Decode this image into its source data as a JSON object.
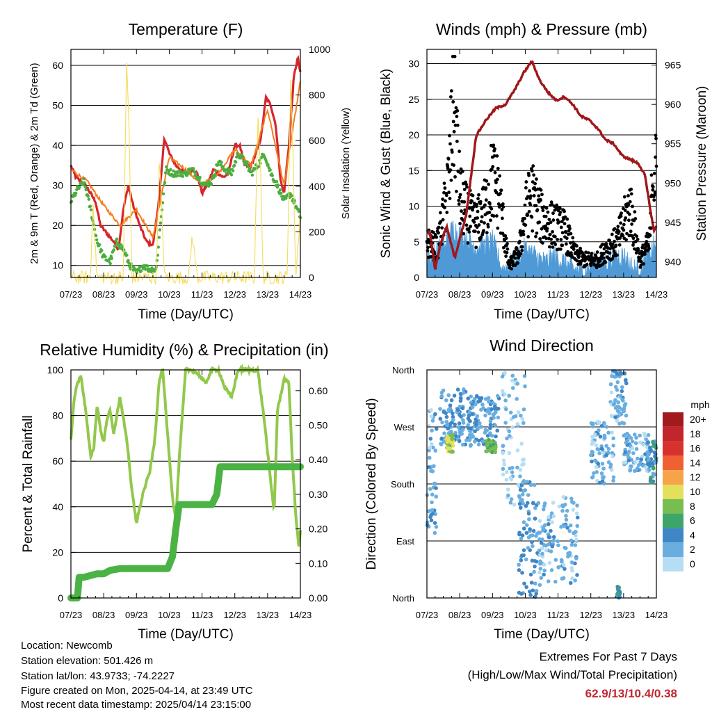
{
  "x_ticks": [
    "07/23",
    "08/23",
    "09/23",
    "10/23",
    "11/23",
    "12/23",
    "13/23",
    "14/23"
  ],
  "panels": {
    "temperature": {
      "title": "Temperature (F)",
      "ylabel": "2m & 9m T (Red, Orange) & 2m Td (Green)",
      "y2label": "Solar Insolation (Yellow)",
      "xlabel": "Time (Day/UTC)"
    },
    "winds": {
      "title": "Winds (mph) & Pressure (mb)",
      "ylabel": "Sonic Wind & Gust (Blue, Black)",
      "y2label": "Station Pressure (Maroon)",
      "xlabel": "Time (Day/UTC)"
    },
    "humidity": {
      "title": "Relative Humidity (%) & Precipitation (in)",
      "ylabel": "Percent & Total Rainfall",
      "xlabel": "Time (Day/UTC)"
    },
    "direction": {
      "title": "Wind Direction",
      "ylabel": "Direction (Colored By Speed)",
      "xlabel": "Time (Day/UTC)",
      "legend_title": "mph"
    }
  },
  "footer": {
    "location": "Location: Newcomb",
    "elevation": "Station elevation: 501.426 m",
    "latlon": "Station lat/lon: 43.9733; -74.2227",
    "created": "Figure created on Mon, 2025-04-14, at 23:49 UTC",
    "recent": "Most recent data timestamp: 2025/04/14 23:15:00"
  },
  "extremes": {
    "heading": "Extremes For Past 7 Days",
    "subheading": "(High/Low/Max Wind/Total Precipitation)",
    "values": "62.9/13/10.4/0.38"
  },
  "colors": {
    "temp_2m": "#d7262b",
    "temp_9m": "#f47c20",
    "dewpoint": "#4bae3f",
    "solar": "#f5dc5a",
    "wind": "#4f9ad6",
    "gust": "#000000",
    "pressure": "#a0171b",
    "rh": "#92c84c",
    "precip": "#4bb344"
  },
  "chart_data": [
    {
      "type": "line",
      "title": "Temperature (F)",
      "xlabel": "Time (Day/UTC)",
      "ylabel": "2m & 9m T (Red, Orange) & 2m Td (Green)",
      "y2label": "Solar Insolation (Yellow)",
      "x_range": [
        0,
        7
      ],
      "ylim": [
        7,
        64
      ],
      "y_ticks": [
        10,
        20,
        30,
        40,
        50,
        60
      ],
      "y2lim": [
        0,
        1000
      ],
      "y2_ticks": [
        0,
        200,
        400,
        600,
        800,
        1000
      ],
      "grid": true,
      "series": [
        {
          "name": "2m T",
          "color": "#d7262b",
          "x": [
            0,
            0.15,
            0.3,
            0.45,
            0.6,
            0.75,
            0.9,
            1.1,
            1.3,
            1.45,
            1.6,
            1.75,
            1.9,
            2.1,
            2.3,
            2.5,
            2.65,
            2.75,
            2.85,
            3.0,
            3.2,
            3.5,
            3.7,
            3.85,
            4.0,
            4.2,
            4.35,
            4.5,
            4.65,
            4.8,
            5.0,
            5.15,
            5.3,
            5.5,
            5.65,
            5.8,
            5.95,
            6.1,
            6.25,
            6.4,
            6.5,
            6.65,
            6.8,
            6.92,
            7.0
          ],
          "y": [
            35,
            32,
            31,
            30,
            28,
            26,
            20,
            18,
            16,
            14,
            24,
            30,
            25,
            20,
            16,
            15,
            24,
            32,
            42,
            38,
            35,
            33,
            34,
            33,
            28,
            31,
            34,
            33,
            32,
            33,
            40,
            40,
            35,
            35,
            38,
            42,
            52,
            50,
            45,
            31,
            28,
            40,
            57,
            62,
            58
          ]
        },
        {
          "name": "9m T",
          "color": "#f47c20",
          "x": [
            0,
            0.5,
            1.0,
            1.5,
            2.0,
            2.5,
            3.0,
            3.5,
            4.0,
            4.5,
            5.0,
            5.5,
            6.0,
            6.5,
            7.0
          ],
          "y": [
            34,
            31,
            25,
            20,
            24,
            17,
            37,
            34,
            30,
            33,
            39,
            35,
            49,
            30,
            56
          ]
        },
        {
          "name": "2m Td",
          "color": "#4bae3f",
          "x": [
            0,
            0.2,
            0.4,
            0.6,
            0.8,
            1.0,
            1.2,
            1.4,
            1.6,
            1.8,
            2.0,
            2.2,
            2.4,
            2.6,
            2.75,
            2.9,
            3.1,
            3.3,
            3.5,
            3.7,
            3.9,
            4.1,
            4.3,
            4.5,
            4.7,
            4.9,
            5.1,
            5.3,
            5.5,
            5.7,
            5.9,
            6.1,
            6.3,
            6.5,
            6.7,
            6.9,
            7.0
          ],
          "y": [
            26,
            29,
            31,
            24,
            16,
            12,
            11,
            16,
            14,
            10,
            8,
            10,
            9,
            9,
            22,
            34,
            33,
            33,
            33,
            34,
            32,
            30,
            31,
            36,
            34,
            33,
            38,
            36,
            33,
            35,
            38,
            33,
            30,
            26,
            28,
            24,
            22
          ]
        },
        {
          "name": "Solar",
          "color": "#f5dc5a",
          "axis": "y2",
          "x": [
            0,
            0.6,
            0.68,
            0.72,
            0.8,
            1.6,
            1.7,
            1.78,
            1.86,
            2.6,
            2.7,
            2.78,
            2.86,
            3.6,
            3.7,
            3.78,
            3.86,
            4.6,
            4.7,
            4.78,
            4.86,
            5.6,
            5.7,
            5.78,
            5.86,
            6.6,
            6.7,
            6.78,
            6.86,
            7.0
          ],
          "y": [
            0,
            0,
            380,
            180,
            0,
            0,
            980,
            600,
            0,
            0,
            520,
            260,
            0,
            0,
            190,
            90,
            0,
            0,
            0,
            0,
            0,
            0,
            720,
            500,
            0,
            0,
            880,
            520,
            0,
            300
          ]
        }
      ]
    },
    {
      "type": "line",
      "title": "Winds (mph) & Pressure (mb)",
      "xlabel": "Time (Day/UTC)",
      "ylabel": "Sonic Wind & Gust (Blue, Black)",
      "y2label": "Station Pressure (Maroon)",
      "x_range": [
        0,
        7
      ],
      "ylim": [
        0,
        32
      ],
      "y_ticks": [
        0,
        5,
        10,
        15,
        20,
        25,
        30
      ],
      "y2lim": [
        938,
        967
      ],
      "y2_ticks": [
        940,
        945,
        950,
        955,
        960,
        965
      ],
      "grid": true,
      "series": [
        {
          "name": "Sonic Wind",
          "color": "#4f9ad6",
          "x": [
            0,
            0.4,
            0.6,
            0.8,
            1.0,
            1.3,
            1.6,
            2.0,
            2.3,
            2.6,
            3.0,
            3.3,
            3.6,
            3.9,
            4.2,
            4.5,
            4.8,
            5.1,
            5.4,
            5.7,
            6.0,
            6.3,
            6.6,
            6.9,
            7.0
          ],
          "y": [
            2,
            4,
            5,
            7,
            6,
            5,
            4,
            5,
            1,
            2,
            4,
            3,
            2,
            3,
            2,
            1,
            1,
            2,
            2,
            3,
            3,
            1,
            2,
            4,
            5
          ]
        },
        {
          "name": "Gust",
          "color": "#000000",
          "type": "scatter",
          "x": [
            0,
            0.3,
            0.5,
            0.7,
            0.8,
            0.9,
            1.0,
            1.2,
            1.5,
            1.8,
            2.0,
            2.2,
            2.5,
            2.8,
            3.0,
            3.2,
            3.5,
            3.8,
            4.2,
            4.5,
            4.8,
            5.2,
            5.5,
            5.8,
            6.0,
            6.2,
            6.5,
            6.8,
            6.9,
            7.0
          ],
          "y": [
            6,
            5,
            10,
            18,
            30,
            24,
            14,
            11,
            9,
            12,
            17,
            14,
            2,
            4,
            11,
            14,
            10,
            9,
            8,
            4,
            3,
            3,
            5,
            6,
            9,
            12,
            3,
            6,
            19,
            17
          ]
        },
        {
          "name": "Station Pressure",
          "color": "#a0171b",
          "axis": "y2",
          "x": [
            0,
            0.1,
            0.25,
            0.4,
            0.6,
            0.85,
            1.2,
            1.5,
            1.8,
            2.1,
            2.4,
            2.7,
            2.95,
            3.2,
            3.45,
            3.7,
            3.95,
            4.2,
            4.45,
            4.7,
            4.95,
            5.2,
            5.45,
            5.7,
            5.95,
            6.2,
            6.45,
            6.65,
            6.8,
            6.92,
            7.0
          ],
          "y": [
            944,
            943.5,
            939,
            942,
            944.5,
            940.5,
            946,
            956,
            958,
            959.5,
            960,
            962,
            964,
            965.5,
            963,
            961.5,
            960.5,
            961,
            960,
            958.5,
            958,
            957,
            955.5,
            955,
            953.5,
            953,
            952.5,
            951,
            947,
            944,
            944.5
          ]
        }
      ]
    },
    {
      "type": "line",
      "title": "Relative Humidity (%) & Precipitation (in)",
      "xlabel": "Time (Day/UTC)",
      "ylabel": "Percent & Total Rainfall",
      "x_range": [
        0,
        7
      ],
      "ylim": [
        0,
        100
      ],
      "y_ticks": [
        0,
        20,
        40,
        60,
        80,
        100
      ],
      "y2lim": [
        0,
        0.66
      ],
      "y2_ticks": [
        0.0,
        0.1,
        0.2,
        0.3,
        0.4,
        0.5,
        0.6
      ],
      "grid": true,
      "series": [
        {
          "name": "RH",
          "color": "#92c84c",
          "x": [
            0,
            0.1,
            0.2,
            0.3,
            0.45,
            0.6,
            0.7,
            0.8,
            0.9,
            1.0,
            1.1,
            1.2,
            1.3,
            1.5,
            1.7,
            1.85,
            2.0,
            2.2,
            2.4,
            2.55,
            2.7,
            2.8,
            2.95,
            3.1,
            3.2,
            3.3,
            3.5,
            3.7,
            3.9,
            4.1,
            4.3,
            4.5,
            4.7,
            4.9,
            5.1,
            5.3,
            5.5,
            5.7,
            5.9,
            6.0,
            6.1,
            6.2,
            6.3,
            6.5,
            6.65,
            6.75,
            6.85,
            6.95,
            7.0
          ],
          "y": [
            69,
            88,
            94,
            98,
            82,
            62,
            66,
            85,
            74,
            68,
            79,
            82,
            72,
            88,
            70,
            48,
            33,
            46,
            55,
            68,
            96,
            100,
            72,
            44,
            34,
            60,
            100,
            100,
            98,
            94,
            100,
            100,
            92,
            88,
            100,
            100,
            100,
            100,
            78,
            64,
            50,
            38,
            82,
            96,
            94,
            62,
            38,
            22,
            30
          ]
        },
        {
          "name": "Total Rainfall",
          "color": "#4bb344",
          "axis": "y2",
          "x": [
            0,
            0.2,
            0.25,
            0.4,
            0.6,
            0.8,
            1.0,
            1.2,
            1.5,
            2.0,
            2.5,
            2.95,
            3.1,
            3.2,
            3.3,
            3.5,
            3.8,
            4.1,
            4.3,
            4.45,
            4.55,
            4.7,
            4.9,
            5.3,
            5.8,
            6.2,
            6.6,
            7.0
          ],
          "y": [
            0,
            0,
            0.06,
            0.06,
            0.065,
            0.07,
            0.07,
            0.08,
            0.085,
            0.085,
            0.085,
            0.085,
            0.12,
            0.2,
            0.27,
            0.27,
            0.27,
            0.27,
            0.27,
            0.3,
            0.38,
            0.38,
            0.38,
            0.38,
            0.38,
            0.38,
            0.38,
            0.38
          ]
        }
      ]
    },
    {
      "type": "scatter",
      "title": "Wind Direction",
      "xlabel": "Time (Day/UTC)",
      "ylabel": "Direction (Colored By Speed)",
      "x_range": [
        0,
        7
      ],
      "y_ticks": [
        "North",
        "West",
        "South",
        "East",
        "North"
      ],
      "y_tick_values": [
        360,
        270,
        180,
        90,
        0
      ],
      "grid": true,
      "legend": {
        "title": "mph",
        "labels": [
          "20+",
          "18",
          "16",
          "14",
          "12",
          "10",
          "8",
          "6",
          "4",
          "2",
          "0"
        ],
        "colors": [
          "#a01a1e",
          "#c2252b",
          "#d8322f",
          "#ef6130",
          "#f7a34a",
          "#e5e05b",
          "#77bd4f",
          "#3ea56a",
          "#3f86c6",
          "#6aaee0",
          "#b6ddf3"
        ]
      },
      "clusters": [
        {
          "x": [
            0.0,
            0.3
          ],
          "y": [
            100,
            300
          ],
          "speed": 2
        },
        {
          "x": [
            0.4,
            1.3
          ],
          "y": [
            240,
            330
          ],
          "speed": 3
        },
        {
          "x": [
            0.6,
            0.8
          ],
          "y": [
            230,
            260
          ],
          "speed": 9
        },
        {
          "x": [
            1.3,
            2.2
          ],
          "y": [
            240,
            320
          ],
          "speed": 3
        },
        {
          "x": [
            1.8,
            2.1
          ],
          "y": [
            230,
            250
          ],
          "speed": 7
        },
        {
          "x": [
            2.3,
            3.0
          ],
          "y": [
            140,
            360
          ],
          "speed": 1
        },
        {
          "x": [
            2.8,
            3.4
          ],
          "y": [
            0,
            190
          ],
          "speed": 3
        },
        {
          "x": [
            3.4,
            4.6
          ],
          "y": [
            20,
            160
          ],
          "speed": 2
        },
        {
          "x": [
            5.0,
            5.7
          ],
          "y": [
            180,
            280
          ],
          "speed": 2
        },
        {
          "x": [
            5.6,
            6.1
          ],
          "y": [
            270,
            360
          ],
          "speed": 2
        },
        {
          "x": [
            6.0,
            6.8
          ],
          "y": [
            200,
            260
          ],
          "speed": 2
        },
        {
          "x": [
            6.7,
            7.0
          ],
          "y": [
            180,
            250
          ],
          "speed": 4
        },
        {
          "x": [
            5.8,
            5.9
          ],
          "y": [
            0,
            20
          ],
          "speed": 4
        }
      ]
    }
  ]
}
